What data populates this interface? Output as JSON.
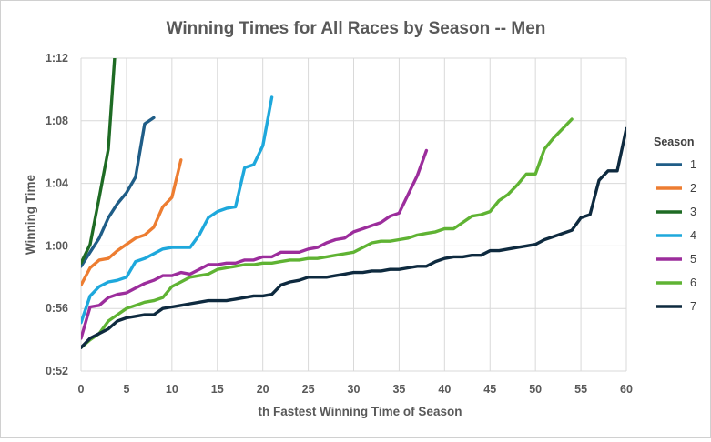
{
  "chart_data": {
    "type": "line",
    "title": "Winning Times for All Races by Season -- Men",
    "xlabel": "__th Fastest Winning Time of Season",
    "ylabel": "Winning Time",
    "xlim": [
      0,
      60
    ],
    "ylim": [
      52,
      72
    ],
    "x_ticks": [
      0,
      5,
      10,
      15,
      20,
      25,
      30,
      35,
      40,
      45,
      50,
      55,
      60
    ],
    "y_ticks": [
      {
        "value": 52,
        "label": "0:52"
      },
      {
        "value": 56,
        "label": "0:56"
      },
      {
        "value": 60,
        "label": "1:00"
      },
      {
        "value": 64,
        "label": "1:04"
      },
      {
        "value": 68,
        "label": "1:08"
      },
      {
        "value": 72,
        "label": "1:12"
      }
    ],
    "grid": true,
    "legend_title": "Season",
    "legend_position": "right",
    "series": [
      {
        "name": "1",
        "color": "#1f5d87",
        "x": [
          0,
          1,
          2,
          3,
          4,
          5,
          6,
          7,
          8
        ],
        "y": [
          58.7,
          59.6,
          60.5,
          61.8,
          62.7,
          63.4,
          64.4,
          67.8,
          68.2
        ]
      },
      {
        "name": "2",
        "color": "#ed7d31",
        "x": [
          0,
          1,
          2,
          3,
          4,
          5,
          6,
          7,
          8,
          9,
          10,
          11
        ],
        "y": [
          57.5,
          58.6,
          59.1,
          59.2,
          59.7,
          60.1,
          60.5,
          60.7,
          61.2,
          62.5,
          63.1,
          65.5
        ]
      },
      {
        "name": "3",
        "color": "#1e6b24",
        "x": [
          0,
          1,
          2,
          3,
          3.7
        ],
        "y": [
          58.9,
          60.1,
          63.1,
          66.2,
          72.0
        ]
      },
      {
        "name": "4",
        "color": "#1ea8dc",
        "x": [
          0,
          1,
          2,
          3,
          4,
          5,
          6,
          7,
          8,
          9,
          10,
          11,
          12,
          13,
          14,
          15,
          16,
          17,
          18,
          19,
          20,
          21
        ],
        "y": [
          55.1,
          56.8,
          57.4,
          57.7,
          57.8,
          58.0,
          59.0,
          59.2,
          59.5,
          59.8,
          59.9,
          59.9,
          59.9,
          60.7,
          61.8,
          62.2,
          62.4,
          62.5,
          65.0,
          65.2,
          66.4,
          69.5
        ]
      },
      {
        "name": "5",
        "color": "#9c2d9c",
        "x": [
          0,
          1,
          2,
          3,
          4,
          5,
          6,
          7,
          8,
          9,
          10,
          11,
          12,
          13,
          14,
          15,
          16,
          17,
          18,
          19,
          20,
          21,
          22,
          23,
          24,
          25,
          26,
          27,
          28,
          29,
          30,
          31,
          32,
          33,
          34,
          35,
          36,
          37,
          38
        ],
        "y": [
          54.1,
          56.1,
          56.2,
          56.7,
          56.9,
          57.0,
          57.3,
          57.6,
          57.8,
          58.1,
          58.1,
          58.3,
          58.2,
          58.5,
          58.8,
          58.8,
          58.9,
          58.9,
          59.1,
          59.1,
          59.3,
          59.3,
          59.6,
          59.6,
          59.6,
          59.8,
          59.9,
          60.2,
          60.4,
          60.5,
          60.9,
          61.1,
          61.3,
          61.5,
          61.9,
          62.1,
          63.3,
          64.5,
          66.1
        ]
      },
      {
        "name": "6",
        "color": "#5fb333",
        "x": [
          0,
          1,
          2,
          3,
          4,
          5,
          6,
          7,
          8,
          9,
          10,
          11,
          12,
          13,
          14,
          15,
          16,
          17,
          18,
          19,
          20,
          21,
          22,
          23,
          24,
          25,
          26,
          27,
          28,
          29,
          30,
          31,
          32,
          33,
          34,
          35,
          36,
          37,
          38,
          39,
          40,
          41,
          42,
          43,
          44,
          45,
          46,
          47,
          48,
          49,
          50,
          51,
          52,
          53,
          54
        ],
        "y": [
          53.5,
          54.0,
          54.4,
          55.2,
          55.6,
          56.0,
          56.2,
          56.4,
          56.5,
          56.7,
          57.4,
          57.7,
          58.0,
          58.1,
          58.2,
          58.5,
          58.6,
          58.7,
          58.8,
          58.8,
          58.9,
          58.9,
          59.0,
          59.1,
          59.1,
          59.2,
          59.2,
          59.3,
          59.4,
          59.5,
          59.6,
          59.9,
          60.2,
          60.3,
          60.3,
          60.4,
          60.5,
          60.7,
          60.8,
          60.9,
          61.1,
          61.1,
          61.5,
          61.9,
          62.0,
          62.2,
          62.9,
          63.3,
          63.9,
          64.6,
          64.6,
          66.2,
          66.9,
          67.5,
          68.1
        ]
      },
      {
        "name": "7",
        "color": "#0e2a3f",
        "x": [
          0,
          1,
          2,
          3,
          4,
          5,
          6,
          7,
          8,
          9,
          10,
          11,
          12,
          13,
          14,
          15,
          16,
          17,
          18,
          19,
          20,
          21,
          22,
          23,
          24,
          25,
          26,
          27,
          28,
          29,
          30,
          31,
          32,
          33,
          34,
          35,
          36,
          37,
          38,
          39,
          40,
          41,
          42,
          43,
          44,
          45,
          46,
          47,
          48,
          49,
          50,
          51,
          52,
          53,
          54,
          55,
          56,
          57,
          58,
          59,
          60
        ],
        "y": [
          53.5,
          54.1,
          54.4,
          54.7,
          55.2,
          55.4,
          55.5,
          55.6,
          55.6,
          56.0,
          56.1,
          56.2,
          56.3,
          56.4,
          56.5,
          56.5,
          56.5,
          56.6,
          56.7,
          56.8,
          56.8,
          56.9,
          57.5,
          57.7,
          57.8,
          58.0,
          58.0,
          58.0,
          58.1,
          58.2,
          58.3,
          58.3,
          58.4,
          58.4,
          58.5,
          58.5,
          58.6,
          58.7,
          58.7,
          59.0,
          59.2,
          59.3,
          59.3,
          59.4,
          59.4,
          59.7,
          59.7,
          59.8,
          59.9,
          60.0,
          60.1,
          60.4,
          60.6,
          60.8,
          61.0,
          61.8,
          62.0,
          64.2,
          64.8,
          64.8,
          67.5
        ]
      }
    ]
  }
}
